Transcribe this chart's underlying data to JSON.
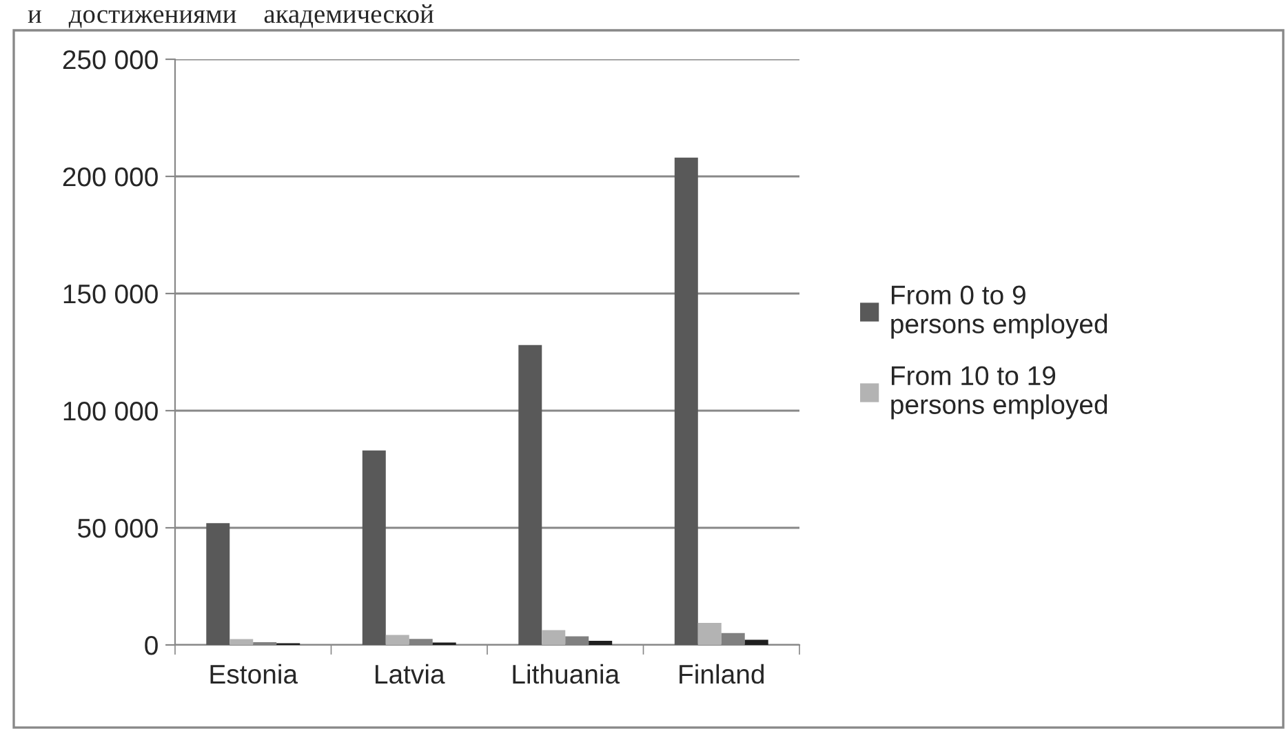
{
  "chart_data": {
    "type": "bar",
    "categories": [
      "Estonia",
      "Latvia",
      "Lithuania",
      "Finland"
    ],
    "series": [
      {
        "name": "From 0 to 9 persons employed",
        "color": "#595959",
        "values": [
          52000,
          83000,
          128000,
          208000
        ]
      },
      {
        "name": "From 10 to 19 persons employed",
        "color": "#b3b3b3",
        "values": [
          2500,
          4300,
          6300,
          9400
        ]
      },
      {
        "color": "#808080",
        "values": [
          1200,
          2600,
          3700,
          5100
        ]
      },
      {
        "color": "#1f1f1f",
        "values": [
          700,
          1000,
          1800,
          2200
        ]
      }
    ],
    "ylim": [
      0,
      250000
    ],
    "yticks": [
      {
        "value": 0,
        "label": "0"
      },
      {
        "value": 50000,
        "label": "50 000"
      },
      {
        "value": 100000,
        "label": "100 000"
      },
      {
        "value": 150000,
        "label": "150 000"
      },
      {
        "value": 200000,
        "label": "200 000"
      },
      {
        "value": 250000,
        "label": "250 000"
      }
    ],
    "grid": "y",
    "legend": "right",
    "annotations": [
      "и    достижениями    академической"
    ]
  }
}
